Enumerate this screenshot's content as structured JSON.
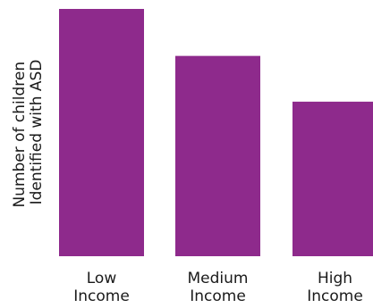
{
  "chart_data": {
    "type": "bar",
    "categories": [
      [
        "Low",
        "Income"
      ],
      [
        "Medium",
        "Income"
      ],
      [
        "High",
        "Income"
      ]
    ],
    "values": [
      100,
      81,
      62.5
    ],
    "ylabel": [
      "Number of children",
      "Identified with ASD"
    ],
    "ylim": [
      0,
      100
    ],
    "bar_color": "#8e2a8c",
    "grid": false,
    "axes_visible": false
  }
}
